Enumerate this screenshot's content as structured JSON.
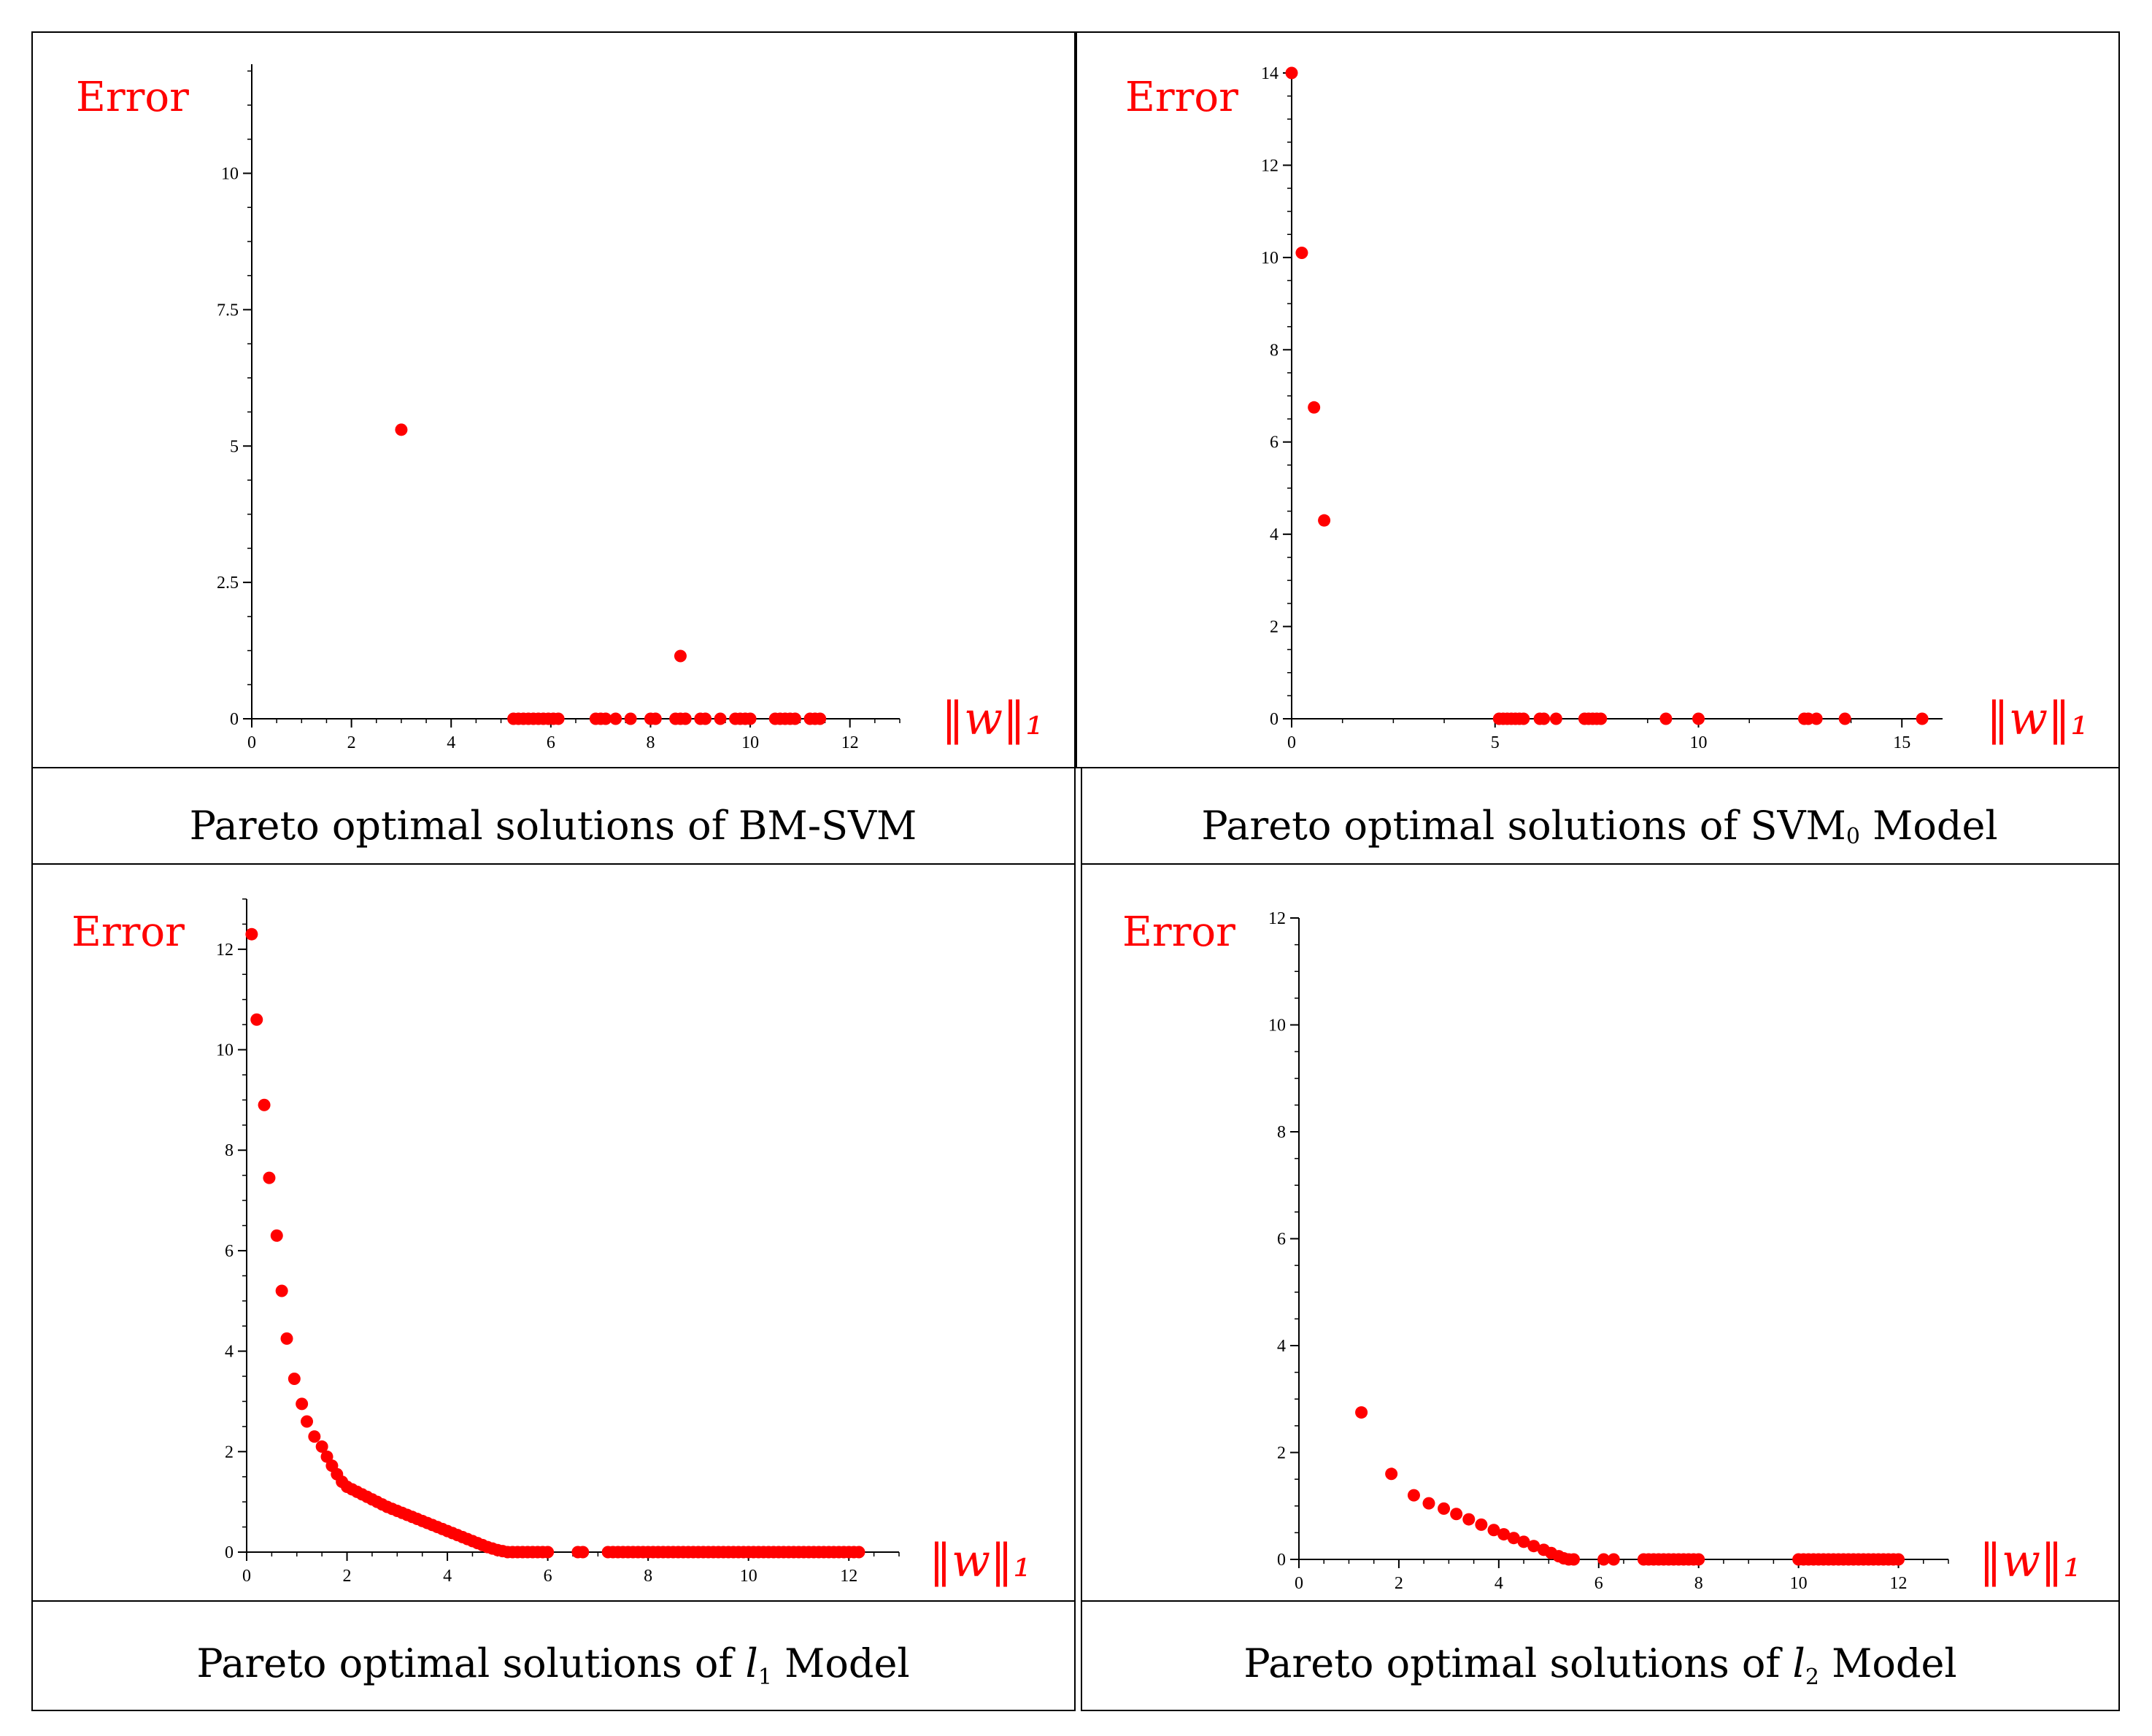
{
  "colors": {
    "accent": "#ff0000",
    "axis": "#000000",
    "frame": "#000000"
  },
  "chart_data": [
    {
      "type": "scatter",
      "title": "Pareto optimal solutions of BM-SVM",
      "caption": {
        "text": "Pareto optimal solutions of BM-SVM"
      },
      "ylabel": "Error",
      "xlabel": "‖w‖₁",
      "xlim": [
        0,
        13
      ],
      "ylim": [
        0,
        12
      ],
      "xticks": [
        0,
        2,
        4,
        6,
        8,
        10,
        12
      ],
      "yticks": [
        0,
        2.5,
        5,
        7.5,
        10
      ],
      "ytick_labels": [
        "0",
        "2.5",
        "5",
        "7.5",
        "10"
      ],
      "grid": false,
      "x": [
        3.0,
        8.6,
        5.25,
        5.35,
        5.45,
        5.55,
        5.65,
        5.75,
        5.85,
        5.95,
        6.05,
        6.15,
        6.9,
        7.0,
        7.1,
        7.3,
        7.6,
        8.0,
        8.1,
        8.5,
        8.6,
        8.7,
        9.0,
        9.1,
        9.4,
        9.7,
        9.8,
        9.9,
        10.0,
        10.5,
        10.6,
        10.7,
        10.8,
        10.9,
        11.2,
        11.3,
        11.4
      ],
      "y": [
        5.3,
        1.15,
        0,
        0,
        0,
        0,
        0,
        0,
        0,
        0,
        0,
        0,
        0,
        0,
        0,
        0,
        0,
        0,
        0,
        0,
        0,
        0,
        0,
        0,
        0,
        0,
        0,
        0,
        0,
        0,
        0,
        0,
        0,
        0,
        0,
        0,
        0
      ]
    },
    {
      "type": "scatter",
      "title": "Pareto optimal solutions of SVM0 Model",
      "caption": {
        "text": "Pareto optimal solutions of SVM",
        "sub": "0",
        "suffix": " Model"
      },
      "ylabel": "Error",
      "xlabel": "‖w‖₁",
      "xlim": [
        0,
        16
      ],
      "ylim": [
        0,
        14
      ],
      "xticks": [
        0,
        5,
        10,
        15
      ],
      "yticks": [
        0,
        2,
        4,
        6,
        8,
        10,
        12,
        14
      ],
      "ytick_labels": [
        "0",
        "2",
        "4",
        "6",
        "8",
        "10",
        "12",
        "14"
      ],
      "grid": false,
      "x": [
        0.0,
        0.25,
        0.55,
        0.8,
        5.1,
        5.2,
        5.3,
        5.4,
        5.5,
        5.6,
        5.7,
        6.1,
        6.2,
        6.5,
        7.2,
        7.3,
        7.4,
        7.5,
        7.6,
        9.2,
        10.0,
        12.6,
        12.7,
        12.9,
        13.6,
        15.5
      ],
      "y": [
        14.0,
        10.1,
        6.75,
        4.3,
        0,
        0,
        0,
        0,
        0,
        0,
        0,
        0,
        0,
        0,
        0,
        0,
        0,
        0,
        0,
        0,
        0,
        0,
        0,
        0,
        0,
        0
      ]
    },
    {
      "type": "scatter",
      "title": "Pareto optimal solutions of l1 Model",
      "caption": {
        "text": "Pareto optimal solutions of ",
        "var": "l",
        "sub": "1",
        "suffix": " Model"
      },
      "ylabel": "Error",
      "xlabel": "‖w‖₁",
      "xlim": [
        0,
        13
      ],
      "ylim": [
        0,
        13
      ],
      "xticks": [
        0,
        2,
        4,
        6,
        8,
        10,
        12
      ],
      "yticks": [
        0,
        2,
        4,
        6,
        8,
        10,
        12
      ],
      "ytick_labels": [
        "0",
        "2",
        "4",
        "6",
        "8",
        "10",
        "12"
      ],
      "grid": false,
      "x": [
        0.1,
        0.2,
        0.35,
        0.45,
        0.6,
        0.7,
        0.8,
        0.95,
        1.1,
        1.2,
        1.35,
        1.5,
        1.6,
        1.7,
        1.8,
        1.9,
        2.0,
        2.1,
        2.2,
        2.3,
        2.4,
        2.5,
        2.6,
        2.7,
        2.8,
        2.9,
        3.0,
        3.1,
        3.2,
        3.3,
        3.4,
        3.5,
        3.6,
        3.7,
        3.8,
        3.9,
        4.0,
        4.1,
        4.2,
        4.3,
        4.4,
        4.5,
        4.6,
        4.7,
        4.8,
        4.9,
        5.0,
        5.1,
        5.2,
        5.3,
        5.4,
        5.5,
        5.6,
        5.7,
        5.8,
        5.9,
        6.0,
        6.6,
        6.7,
        7.2,
        7.3,
        7.4,
        7.5,
        7.6,
        7.7,
        7.8,
        7.9,
        8.0,
        8.1,
        8.2,
        8.3,
        8.4,
        8.5,
        8.6,
        8.7,
        8.8,
        8.9,
        9.0,
        9.1,
        9.2,
        9.3,
        9.4,
        9.5,
        9.6,
        9.7,
        9.8,
        9.9,
        10.0,
        10.1,
        10.2,
        10.3,
        10.4,
        10.5,
        10.6,
        10.7,
        10.8,
        10.9,
        11.0,
        11.1,
        11.2,
        11.3,
        11.4,
        11.5,
        11.6,
        11.7,
        11.8,
        11.9,
        12.0,
        12.1,
        12.2
      ],
      "y": [
        12.3,
        10.6,
        8.9,
        7.45,
        6.3,
        5.2,
        4.25,
        3.45,
        2.95,
        2.6,
        2.3,
        2.1,
        1.9,
        1.72,
        1.55,
        1.4,
        1.3,
        1.25,
        1.2,
        1.15,
        1.1,
        1.05,
        1.0,
        0.95,
        0.9,
        0.86,
        0.82,
        0.78,
        0.74,
        0.7,
        0.66,
        0.62,
        0.58,
        0.54,
        0.5,
        0.46,
        0.42,
        0.38,
        0.34,
        0.3,
        0.26,
        0.22,
        0.18,
        0.14,
        0.1,
        0.07,
        0.04,
        0.02,
        0,
        0,
        0,
        0,
        0,
        0,
        0,
        0,
        0,
        0,
        0,
        0,
        0,
        0,
        0,
        0,
        0,
        0,
        0,
        0,
        0,
        0,
        0,
        0,
        0,
        0,
        0,
        0,
        0,
        0,
        0,
        0,
        0,
        0,
        0,
        0,
        0,
        0,
        0,
        0,
        0,
        0,
        0,
        0,
        0,
        0,
        0,
        0,
        0,
        0,
        0,
        0,
        0,
        0,
        0,
        0,
        0,
        0,
        0,
        0,
        0,
        0
      ]
    },
    {
      "type": "scatter",
      "title": "Pareto optimal solutions of l2 Model",
      "caption": {
        "text": "Pareto optimal solutions of ",
        "var": "l",
        "sub": "2",
        "suffix": " Model"
      },
      "ylabel": "Error",
      "xlabel": "‖w‖₁",
      "xlim": [
        0,
        13
      ],
      "ylim": [
        0,
        12
      ],
      "xticks": [
        0,
        2,
        4,
        6,
        8,
        10,
        12
      ],
      "yticks": [
        0,
        2,
        4,
        6,
        8,
        10,
        12
      ],
      "ytick_labels": [
        "0",
        "2",
        "4",
        "6",
        "8",
        "10",
        "12"
      ],
      "grid": false,
      "x": [
        1.25,
        1.85,
        2.3,
        2.6,
        2.9,
        3.15,
        3.4,
        3.65,
        3.9,
        4.1,
        4.3,
        4.5,
        4.7,
        4.9,
        5.05,
        5.2,
        5.3,
        5.4,
        5.5,
        6.1,
        6.3,
        6.9,
        7.0,
        7.1,
        7.2,
        7.3,
        7.4,
        7.5,
        7.6,
        7.7,
        7.8,
        7.9,
        8.0,
        10.0,
        10.1,
        10.2,
        10.3,
        10.4,
        10.5,
        10.6,
        10.7,
        10.8,
        10.9,
        11.0,
        11.1,
        11.2,
        11.3,
        11.4,
        11.5,
        11.6,
        11.7,
        11.8,
        11.9,
        12.0
      ],
      "y": [
        2.75,
        1.6,
        1.2,
        1.05,
        0.95,
        0.85,
        0.75,
        0.65,
        0.55,
        0.47,
        0.4,
        0.33,
        0.25,
        0.18,
        0.12,
        0.06,
        0.02,
        0,
        0,
        0,
        0,
        0,
        0,
        0,
        0,
        0,
        0,
        0,
        0,
        0,
        0,
        0,
        0,
        0,
        0,
        0,
        0,
        0,
        0,
        0,
        0,
        0,
        0,
        0,
        0,
        0,
        0,
        0,
        0,
        0,
        0,
        0,
        0,
        0
      ]
    }
  ]
}
